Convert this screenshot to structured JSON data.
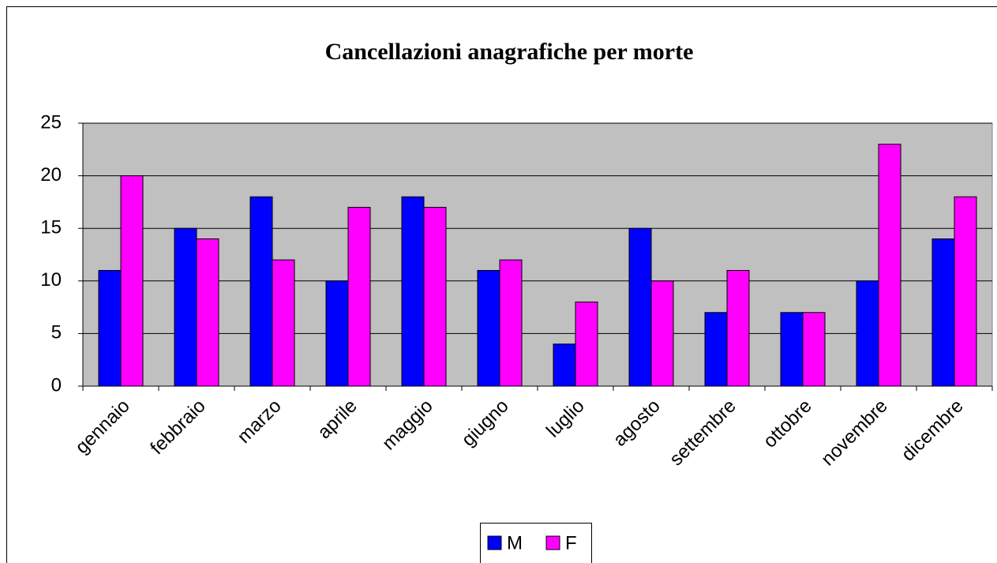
{
  "chart_data": {
    "type": "bar",
    "title": "Cancellazioni anagrafiche per morte",
    "categories": [
      "gennaio",
      "febbraio",
      "marzo",
      "aprile",
      "maggio",
      "giugno",
      "luglio",
      "agosto",
      "settembre",
      "ottobre",
      "novembre",
      "dicembre"
    ],
    "series": [
      {
        "name": "M",
        "color": "#0000ff",
        "values": [
          11,
          15,
          18,
          10,
          18,
          11,
          4,
          15,
          7,
          7,
          10,
          14
        ]
      },
      {
        "name": "F",
        "color": "#ff00ff",
        "values": [
          20,
          14,
          12,
          17,
          17,
          12,
          8,
          10,
          11,
          7,
          23,
          18
        ]
      }
    ],
    "ylim": [
      0,
      25
    ],
    "yticks": [
      0,
      5,
      10,
      15,
      20,
      25
    ],
    "grid": true,
    "legend": "bottom",
    "plot_background": "#c0c0c0"
  }
}
